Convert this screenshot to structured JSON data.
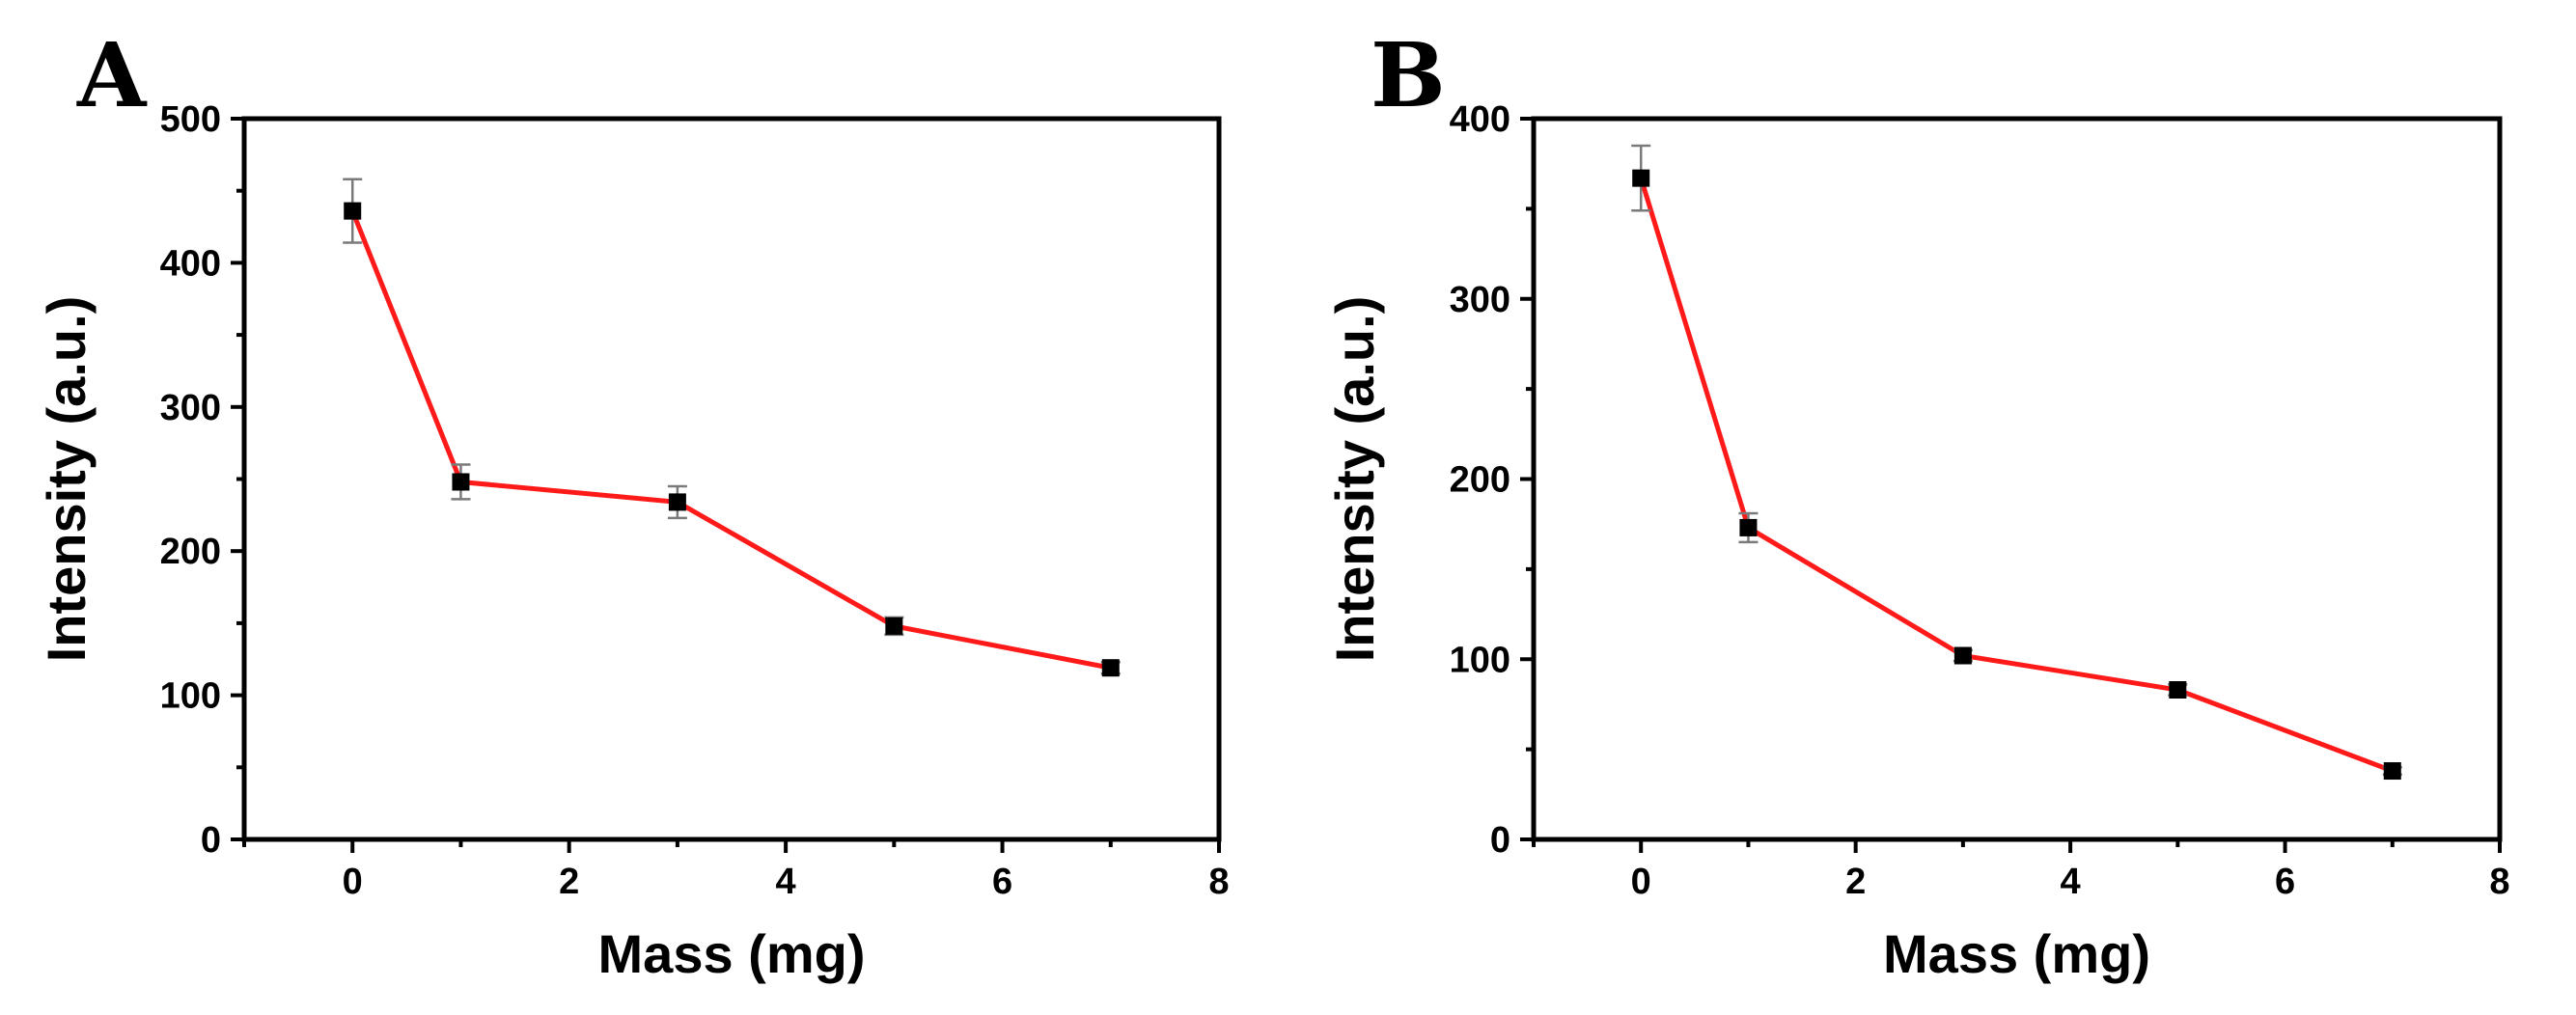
{
  "chart_data": [
    {
      "type": "line",
      "panel_label": "A",
      "xlabel": "Mass (mg)",
      "ylabel": "Intensity (a.u.)",
      "xlim": [
        -1,
        8
      ],
      "ylim": [
        0,
        500
      ],
      "xticks": [
        0,
        2,
        4,
        6,
        8
      ],
      "yticks": [
        0,
        100,
        200,
        300,
        400,
        500
      ],
      "grid": false,
      "series": [
        {
          "name": "Intensity",
          "x": [
            0,
            1,
            3,
            5,
            7
          ],
          "y": [
            436,
            248,
            234,
            148,
            119
          ],
          "err": [
            22,
            12,
            11,
            6,
            4
          ]
        }
      ]
    },
    {
      "type": "line",
      "panel_label": "B",
      "xlabel": "Mass (mg)",
      "ylabel": "Intensity (a.u.)",
      "xlim": [
        -1,
        8
      ],
      "ylim": [
        0,
        400
      ],
      "xticks": [
        0,
        2,
        4,
        6,
        8
      ],
      "yticks": [
        0,
        100,
        200,
        300,
        400
      ],
      "grid": false,
      "series": [
        {
          "name": "Intensity",
          "x": [
            0,
            1,
            3,
            5,
            7
          ],
          "y": [
            367,
            173,
            102,
            83,
            38
          ],
          "err": [
            18,
            8,
            3,
            3,
            2
          ]
        }
      ]
    }
  ],
  "colors": {
    "line": "#ff1a1a",
    "marker": "#000000",
    "error_bar": "#7a7a7a"
  }
}
